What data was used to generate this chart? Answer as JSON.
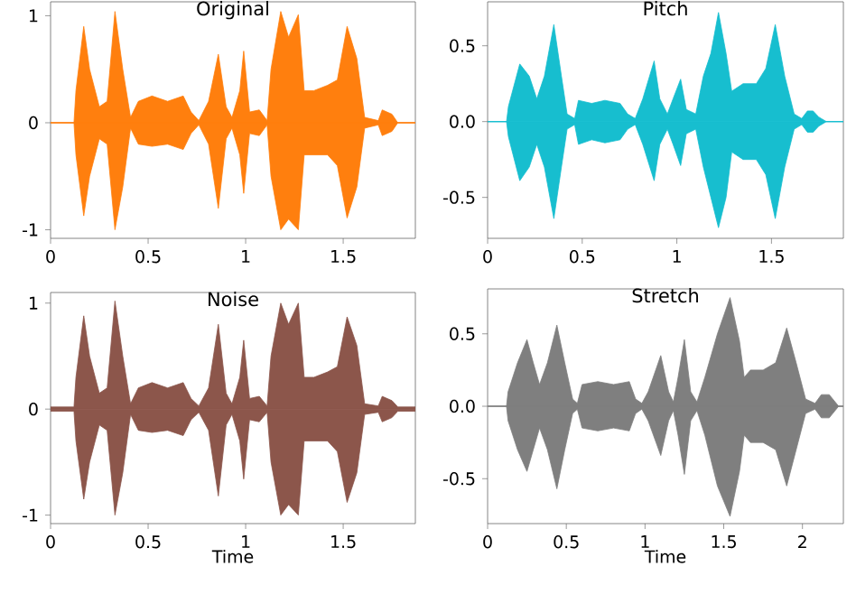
{
  "chart_data": [
    {
      "type": "area",
      "title": "Original",
      "xlim": [
        0,
        1.87
      ],
      "ylim": [
        -1.08,
        1.13
      ],
      "xticks": [
        0,
        0.5,
        1,
        1.5
      ],
      "yticks": [
        -1,
        0,
        1
      ],
      "x": [
        0,
        0.12,
        0.13,
        0.17,
        0.2,
        0.25,
        0.29,
        0.33,
        0.37,
        0.41,
        0.45,
        0.52,
        0.6,
        0.68,
        0.72,
        0.76,
        0.81,
        0.86,
        0.9,
        0.93,
        0.97,
        0.99,
        1.02,
        1.07,
        1.11,
        1.13,
        1.18,
        1.22,
        1.27,
        1.3,
        1.35,
        1.42,
        1.47,
        1.52,
        1.57,
        1.61,
        1.68,
        1.7,
        1.75,
        1.78,
        1.87
      ],
      "series": [
        {
          "color": "#ff7f0e",
          "values": [
            0,
            0,
            0.3,
            0.9,
            0.5,
            0.15,
            0.2,
            1.04,
            0.5,
            0.05,
            0.2,
            0.25,
            0.2,
            0.25,
            0.1,
            0.02,
            0.2,
            0.64,
            0.15,
            0.05,
            0.3,
            0.67,
            0.1,
            0.12,
            0.02,
            0.5,
            1.04,
            0.8,
            1.01,
            0.3,
            0.3,
            0.35,
            0.4,
            0.9,
            0.6,
            0.05,
            0.02,
            0.12,
            0.08,
            0,
            0
          ]
        },
        {
          "color": "#ff7f0e",
          "values": [
            0,
            0,
            -0.3,
            -0.87,
            -0.5,
            -0.15,
            -0.2,
            -1.0,
            -0.6,
            -0.05,
            -0.2,
            -0.22,
            -0.2,
            -0.25,
            -0.1,
            -0.02,
            -0.2,
            -0.8,
            -0.15,
            -0.05,
            -0.3,
            -0.66,
            -0.1,
            -0.12,
            -0.02,
            -0.5,
            -1.0,
            -0.9,
            -1.0,
            -0.3,
            -0.3,
            -0.3,
            -0.4,
            -0.89,
            -0.6,
            -0.05,
            -0.02,
            -0.12,
            -0.08,
            0,
            0
          ]
        }
      ]
    },
    {
      "type": "area",
      "title": "Pitch",
      "xlim": [
        0,
        1.88
      ],
      "ylim": [
        -0.77,
        0.79
      ],
      "xticks": [
        0,
        0.5,
        1,
        1.5
      ],
      "yticks": [
        {
          "value": -0.5,
          "label": "-0.5"
        },
        {
          "value": 0,
          "label": "0.0"
        },
        {
          "value": 0.5,
          "label": "0.5"
        }
      ],
      "x": [
        0,
        0.1,
        0.11,
        0.17,
        0.22,
        0.26,
        0.3,
        0.35,
        0.39,
        0.42,
        0.46,
        0.48,
        0.55,
        0.62,
        0.7,
        0.74,
        0.78,
        0.82,
        0.88,
        0.91,
        0.95,
        0.98,
        1.02,
        1.05,
        1.1,
        1.14,
        1.18,
        1.22,
        1.26,
        1.29,
        1.35,
        1.42,
        1.47,
        1.52,
        1.57,
        1.62,
        1.66,
        1.69,
        1.72,
        1.75,
        1.79,
        1.88
      ],
      "series": [
        {
          "color": "#17becf",
          "values": [
            0,
            0,
            0.1,
            0.38,
            0.3,
            0.15,
            0.3,
            0.64,
            0.3,
            0.05,
            0.02,
            0.14,
            0.12,
            0.14,
            0.12,
            0.05,
            0.02,
            0.15,
            0.4,
            0.15,
            0.05,
            0.15,
            0.28,
            0.08,
            0.05,
            0.3,
            0.45,
            0.72,
            0.45,
            0.2,
            0.25,
            0.25,
            0.35,
            0.64,
            0.3,
            0.05,
            0.02,
            0.07,
            0.07,
            0.03,
            0,
            0
          ]
        },
        {
          "color": "#17becf",
          "values": [
            0,
            0,
            -0.1,
            -0.39,
            -0.3,
            -0.15,
            -0.3,
            -0.64,
            -0.3,
            -0.05,
            -0.02,
            -0.15,
            -0.12,
            -0.14,
            -0.12,
            -0.05,
            -0.02,
            -0.15,
            -0.39,
            -0.15,
            -0.05,
            -0.15,
            -0.29,
            -0.08,
            -0.05,
            -0.3,
            -0.5,
            -0.7,
            -0.5,
            -0.2,
            -0.25,
            -0.25,
            -0.35,
            -0.64,
            -0.3,
            -0.05,
            -0.02,
            -0.07,
            -0.07,
            -0.03,
            0,
            0
          ]
        }
      ]
    },
    {
      "type": "area",
      "title": "Noise",
      "xlabel": "Time",
      "xlim": [
        0,
        1.87
      ],
      "ylim": [
        -1.08,
        1.1
      ],
      "xticks": [
        0,
        0.5,
        1,
        1.5
      ],
      "yticks": [
        -1,
        0,
        1
      ],
      "x": [
        0,
        0.12,
        0.13,
        0.17,
        0.2,
        0.25,
        0.29,
        0.33,
        0.37,
        0.41,
        0.45,
        0.52,
        0.6,
        0.68,
        0.72,
        0.76,
        0.81,
        0.86,
        0.9,
        0.93,
        0.97,
        0.99,
        1.02,
        1.07,
        1.11,
        1.13,
        1.18,
        1.22,
        1.27,
        1.3,
        1.35,
        1.42,
        1.47,
        1.52,
        1.57,
        1.61,
        1.68,
        1.7,
        1.75,
        1.78,
        1.87
      ],
      "series": [
        {
          "color": "#8c564b",
          "values": [
            0.02,
            0.02,
            0.3,
            0.88,
            0.5,
            0.15,
            0.2,
            1.02,
            0.5,
            0.05,
            0.2,
            0.25,
            0.2,
            0.25,
            0.1,
            0.03,
            0.2,
            0.8,
            0.15,
            0.05,
            0.3,
            0.65,
            0.1,
            0.12,
            0.03,
            0.5,
            1.0,
            0.8,
            1.0,
            0.3,
            0.3,
            0.35,
            0.4,
            0.87,
            0.6,
            0.05,
            0.03,
            0.12,
            0.08,
            0.02,
            0.02
          ]
        },
        {
          "color": "#8c564b",
          "values": [
            -0.02,
            -0.02,
            -0.3,
            -0.85,
            -0.5,
            -0.15,
            -0.2,
            -1.0,
            -0.6,
            -0.05,
            -0.2,
            -0.22,
            -0.2,
            -0.25,
            -0.1,
            -0.03,
            -0.2,
            -0.82,
            -0.15,
            -0.05,
            -0.3,
            -0.66,
            -0.1,
            -0.12,
            -0.03,
            -0.5,
            -1.0,
            -0.9,
            -1.0,
            -0.3,
            -0.3,
            -0.3,
            -0.4,
            -0.88,
            -0.6,
            -0.05,
            -0.03,
            -0.12,
            -0.08,
            -0.02,
            -0.02
          ]
        }
      ]
    },
    {
      "type": "area",
      "title": "Stretch",
      "xlabel": "Time",
      "xlim": [
        0,
        2.26
      ],
      "ylim": [
        -0.81,
        0.81
      ],
      "xticks": [
        0,
        0.5,
        1,
        1.5,
        2
      ],
      "yticks": [
        {
          "value": -0.5,
          "label": "-0.5"
        },
        {
          "value": 0,
          "label": "0.0"
        },
        {
          "value": 0.5,
          "label": "0.5"
        }
      ],
      "x": [
        0,
        0.12,
        0.13,
        0.19,
        0.25,
        0.29,
        0.33,
        0.38,
        0.44,
        0.49,
        0.54,
        0.57,
        0.6,
        0.7,
        0.8,
        0.9,
        0.94,
        0.98,
        1.02,
        1.1,
        1.15,
        1.18,
        1.21,
        1.25,
        1.29,
        1.33,
        1.38,
        1.46,
        1.54,
        1.6,
        1.63,
        1.67,
        1.75,
        1.83,
        1.9,
        1.96,
        2.02,
        2.08,
        2.12,
        2.17,
        2.23,
        2.26
      ],
      "series": [
        {
          "color": "#7f7f7f",
          "values": [
            0,
            0,
            0.1,
            0.3,
            0.46,
            0.3,
            0.15,
            0.3,
            0.56,
            0.3,
            0.05,
            0.02,
            0.15,
            0.17,
            0.15,
            0.17,
            0.05,
            0.02,
            0.1,
            0.35,
            0.1,
            0.03,
            0.2,
            0.46,
            0.1,
            0.03,
            0.2,
            0.5,
            0.75,
            0.45,
            0.2,
            0.25,
            0.25,
            0.3,
            0.54,
            0.3,
            0.05,
            0.02,
            0.08,
            0.08,
            0,
            0
          ]
        },
        {
          "color": "#7f7f7f",
          "values": [
            0,
            0,
            -0.1,
            -0.3,
            -0.45,
            -0.3,
            -0.15,
            -0.3,
            -0.57,
            -0.3,
            -0.05,
            -0.02,
            -0.15,
            -0.17,
            -0.15,
            -0.17,
            -0.05,
            -0.02,
            -0.1,
            -0.34,
            -0.1,
            -0.03,
            -0.2,
            -0.47,
            -0.1,
            -0.03,
            -0.2,
            -0.55,
            -0.76,
            -0.45,
            -0.2,
            -0.25,
            -0.25,
            -0.3,
            -0.55,
            -0.3,
            -0.05,
            -0.02,
            -0.08,
            -0.08,
            0,
            0
          ]
        }
      ]
    }
  ]
}
